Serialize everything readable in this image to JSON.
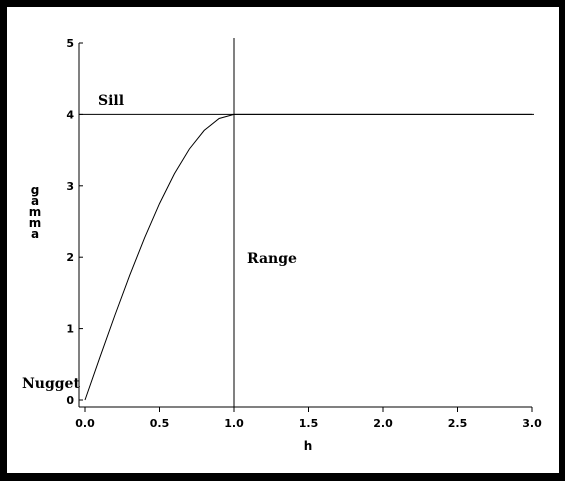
{
  "chart_data": {
    "type": "line",
    "title": "",
    "xlabel": "h",
    "ylabel": "gamma",
    "xlim": [
      0,
      3.0
    ],
    "ylim": [
      0,
      5
    ],
    "x_ticks": [
      "0.0",
      "0.5",
      "1.0",
      "1.5",
      "2.0",
      "2.5",
      "3.0"
    ],
    "y_ticks": [
      "0",
      "1",
      "2",
      "3",
      "4",
      "5"
    ],
    "grid": false,
    "legend": "none",
    "model": "spherical",
    "sill": 4,
    "range": 1.0,
    "nugget": 0,
    "series": [
      {
        "x": [
          0.0,
          0.1,
          0.2,
          0.3,
          0.4,
          0.5,
          0.6,
          0.7,
          0.8,
          0.9,
          1.0,
          1.5,
          2.0,
          2.5,
          3.0
        ],
        "y": [
          0.0,
          0.598,
          1.184,
          1.746,
          2.272,
          2.75,
          3.168,
          3.514,
          3.776,
          3.942,
          4.0,
          4.0,
          4.0,
          4.0,
          4.0
        ],
        "color": "#000000"
      }
    ],
    "reference_lines": [
      {
        "orientation": "horizontal",
        "value": 4
      },
      {
        "orientation": "vertical",
        "value": 1.0
      }
    ],
    "annotations": {
      "sill": "Sill",
      "range": "Range",
      "nugget": "Nugget"
    }
  }
}
